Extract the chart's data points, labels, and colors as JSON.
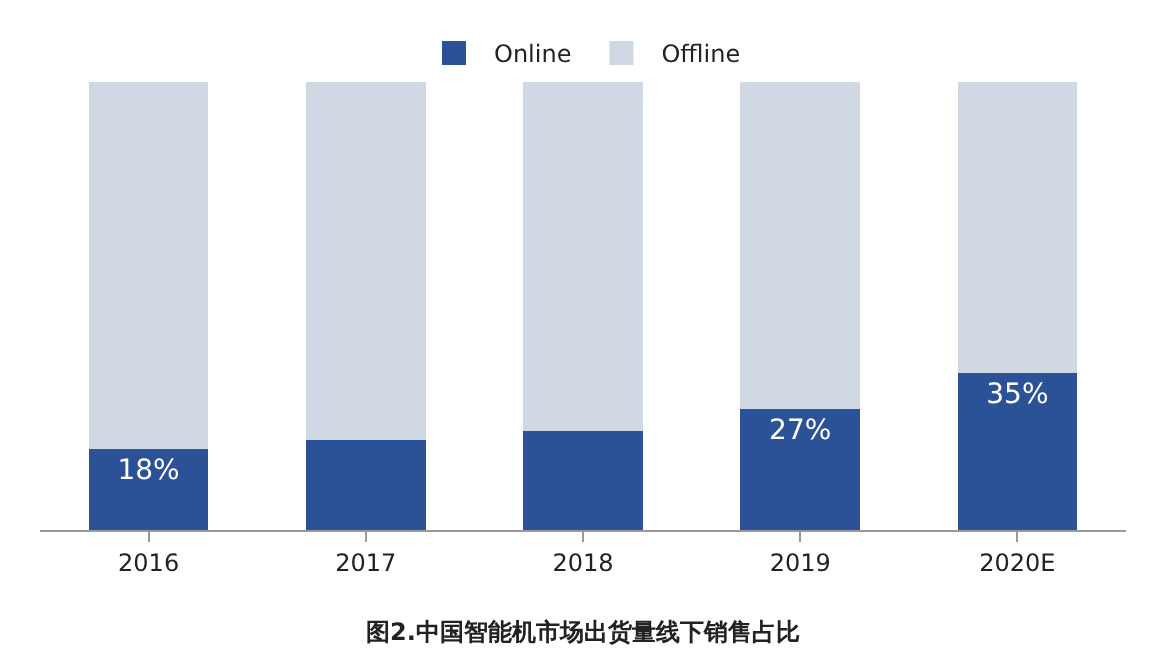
{
  "chart_data": {
    "type": "bar",
    "stacked": true,
    "categories": [
      "2016",
      "2017",
      "2018",
      "2019",
      "2020E"
    ],
    "series": [
      {
        "name": "Online",
        "color": "#2b5297",
        "values": [
          18,
          20,
          22,
          27,
          35
        ],
        "value_labels": [
          "18%",
          null,
          null,
          "27%",
          "35%"
        ]
      },
      {
        "name": "Offline",
        "color": "#cfd8e3",
        "values": [
          82,
          80,
          78,
          73,
          65
        ]
      }
    ],
    "ylim": [
      0,
      100
    ],
    "tick_labels": "x",
    "legend": "top",
    "annotations": [
      "图2.中国智能机市场出货量线下销售占比"
    ]
  }
}
